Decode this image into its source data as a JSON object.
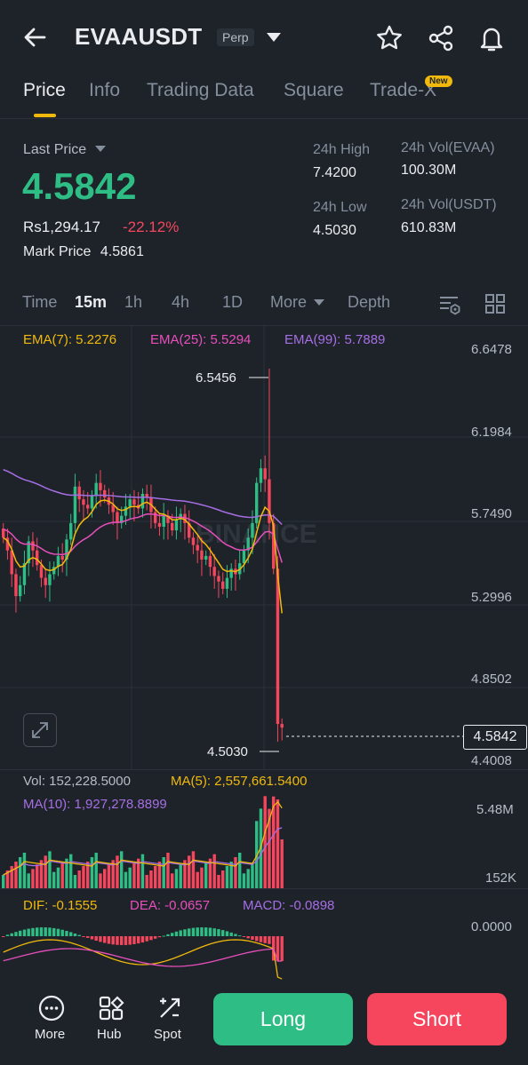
{
  "header": {
    "symbol": "EVAAUSDT",
    "contract_type": "Perp",
    "icons": [
      "back-arrow-icon",
      "dropdown-caret-icon",
      "star-icon",
      "share-icon",
      "bell-icon"
    ]
  },
  "tabs": [
    {
      "label": "Price",
      "active": true
    },
    {
      "label": "Info",
      "active": false
    },
    {
      "label": "Trading Data",
      "active": false
    },
    {
      "label": "Square",
      "active": false
    },
    {
      "label": "Trade-X",
      "active": false,
      "badge": "New"
    }
  ],
  "ticker": {
    "last_price_label": "Last Price",
    "last_price": "4.5842",
    "fiat_price": "Rs1,294.17",
    "change_pct": "-22.12%",
    "mark_price_label": "Mark Price",
    "mark_price": "4.5861",
    "high_label": "24h High",
    "high": "7.4200",
    "low_label": "24h Low",
    "low": "4.5030",
    "vol_base_label": "24h Vol(EVAA)",
    "vol_base": "100.30M",
    "vol_quote_label": "24h Vol(USDT)",
    "vol_quote": "610.83M"
  },
  "intervals": {
    "items": [
      "Time",
      "15m",
      "1h",
      "4h",
      "1D",
      "More",
      "Depth"
    ],
    "active": "15m"
  },
  "indicators": {
    "ema7": "EMA(7): 5.2276",
    "ema25": "EMA(25): 5.5294",
    "ema99": "EMA(99): 5.7889"
  },
  "price_axis": [
    "6.6478",
    "6.1984",
    "5.7490",
    "5.2996",
    "4.8502",
    "4.4008"
  ],
  "chart_marks": {
    "high_mark": "6.5456",
    "low_mark": "4.5030",
    "current_price": "4.5842",
    "watermark": "BINANCE"
  },
  "volume": {
    "vol": "Vol: 152,228.5000",
    "ma5": "MA(5): 2,557,661.5400",
    "ma10": "MA(10): 1,927,278.8899",
    "axis_top": "5.48M",
    "axis_bottom": "152K"
  },
  "macd": {
    "dif": "DIF: -0.1555",
    "dea": "DEA: -0.0657",
    "macd": "MACD: -0.0898",
    "axis_zero": "0.0000"
  },
  "bottom_nav": [
    {
      "label": "More",
      "icon": "more-dots-icon"
    },
    {
      "label": "Hub",
      "icon": "hub-grid-icon"
    },
    {
      "label": "Spot",
      "icon": "spot-swap-icon"
    }
  ],
  "actions": {
    "long_label": "Long",
    "short_label": "Short"
  },
  "colors": {
    "up": "#2ebd85",
    "down": "#f6465d",
    "accent": "#f0b90b",
    "ema7": "#f0b90b",
    "ema25": "#e84fbd",
    "ema99": "#a66ee5",
    "background": "#1e2329"
  },
  "chart_data": {
    "type": "candlestick",
    "price_axis_range": [
      4.4008,
      6.6478
    ],
    "high_marker": 6.5456,
    "low_marker": 4.503,
    "last_price": 4.5842,
    "series": [
      {
        "name": "EMA(7)",
        "last": 5.2276
      },
      {
        "name": "EMA(25)",
        "last": 5.5294
      },
      {
        "name": "EMA(99)",
        "last": 5.7889
      }
    ]
  }
}
